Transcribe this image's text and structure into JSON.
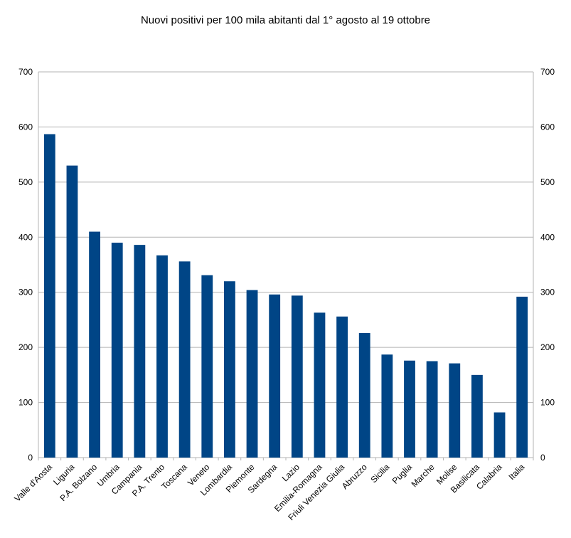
{
  "chart_data": {
    "type": "bar",
    "title": "Nuovi positivi per 100 mila abitanti dal 1° agosto al 19 ottobre",
    "xlabel": "",
    "ylabel": "",
    "ylim": [
      0,
      700
    ],
    "yticks": [
      0,
      100,
      200,
      300,
      400,
      500,
      600,
      700
    ],
    "right_axis": true,
    "grid": true,
    "legend": "none",
    "bar_color": "#004586",
    "categories": [
      "Valle d'Aosta",
      "Liguria",
      "P.A. Bolzano",
      "Umbria",
      "Campania",
      "P.A. Trento",
      "Toscana",
      "Veneto",
      "Lombardia",
      "Piemonte",
      "Sardegna",
      "Lazio",
      "Emilia-Romagna",
      "Friuli Venezia Giulia",
      "Abruzzo",
      "Sicilia",
      "Puglia",
      "Marche",
      "Molise",
      "Basilicata",
      "Calabria",
      "Italia"
    ],
    "values": [
      587,
      530,
      410,
      390,
      386,
      367,
      356,
      331,
      320,
      304,
      296,
      294,
      263,
      256,
      226,
      187,
      176,
      175,
      171,
      150,
      82,
      292
    ]
  }
}
